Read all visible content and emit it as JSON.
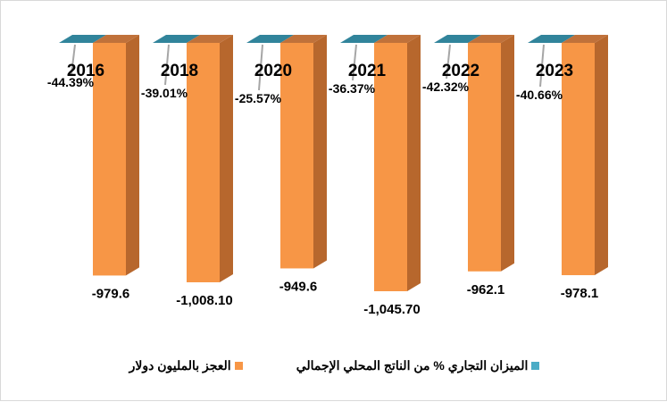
{
  "chart_data": {
    "type": "bar",
    "categories": [
      "2016",
      "2018",
      "2020",
      "2021",
      "2022",
      "2023"
    ],
    "series": [
      {
        "name": "الميزان التجاري % من الناتج المحلي الإجمالي",
        "values": [
          -44.39,
          -39.01,
          -25.57,
          -36.37,
          -42.32,
          -40.66
        ],
        "labels": [
          "-44.39%",
          "-39.01%",
          "-25.57%",
          "-36.37%",
          "-42.32%",
          "-40.66%"
        ],
        "color": "#2e8b9e"
      },
      {
        "name": "العجز بالمليون دولار",
        "values": [
          -979.6,
          -1008.1,
          -949.6,
          -1045.7,
          -962.1,
          -978.1
        ],
        "labels": [
          "-979.6",
          "-1,008.10",
          "-949.6",
          "-1,045.70",
          "-962.1",
          "-978.1"
        ],
        "color": "#f79646"
      }
    ],
    "title": "",
    "xlabel": "",
    "ylabel": "",
    "legend": "bottom",
    "grid": false
  }
}
